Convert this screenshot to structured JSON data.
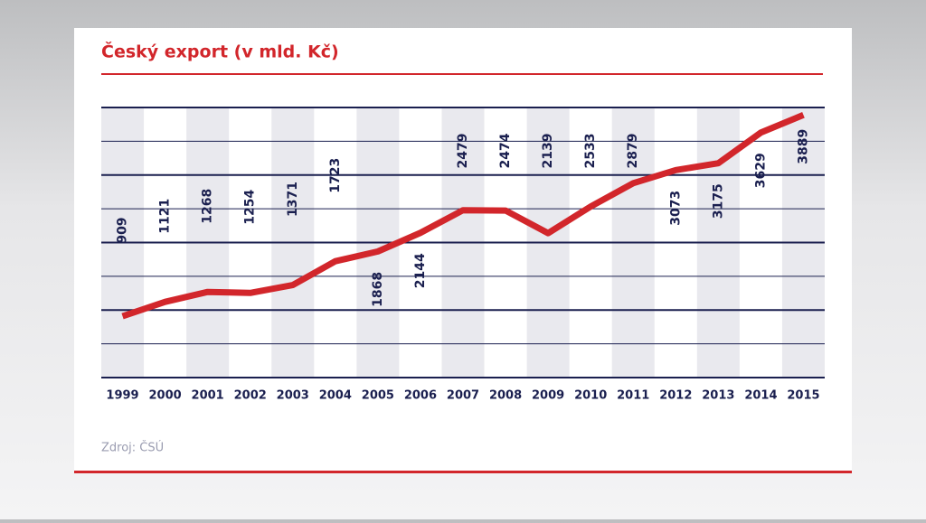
{
  "chart_data": {
    "type": "line",
    "title": "Český export (v mld. Kč)",
    "source": "Zdroj: ČSÚ",
    "categories": [
      "1999",
      "2000",
      "2001",
      "2002",
      "2003",
      "2004",
      "2005",
      "2006",
      "2007",
      "2008",
      "2009",
      "2010",
      "2011",
      "2012",
      "2013",
      "2014",
      "2015"
    ],
    "series": [
      {
        "name": "Export",
        "color": "#d2262b",
        "values": [
          909,
          1121,
          1268,
          1254,
          1371,
          1723,
          1868,
          2144,
          2479,
          2474,
          2139,
          2533,
          2879,
          3073,
          3175,
          3629,
          3889
        ]
      }
    ],
    "ylim": [
      0,
      4000
    ],
    "yticks": [
      0,
      500,
      1000,
      1500,
      2000,
      2500,
      3000,
      3500,
      4000
    ],
    "grid": true
  }
}
